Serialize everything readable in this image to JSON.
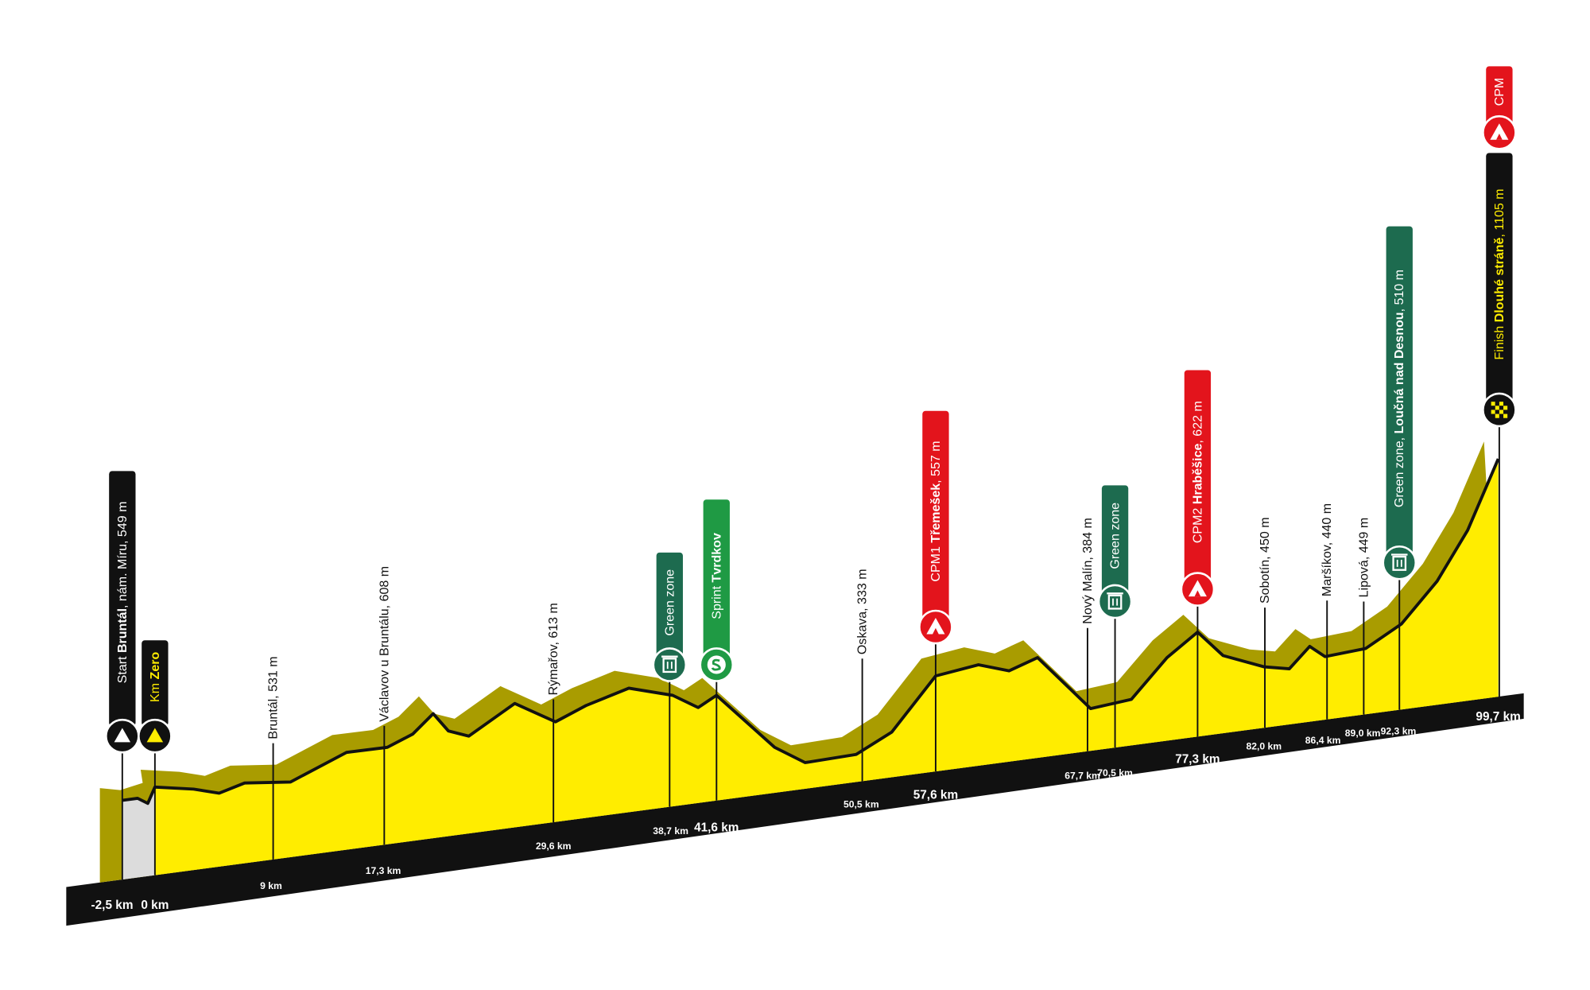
{
  "markers": [
    {
      "label": {
        "pre": "Start ",
        "bold": "Bruntál",
        "post": ", nám. Míru, 549 m"
      },
      "km": "-2,5 km"
    },
    {
      "label": {
        "pre": "Km ",
        "bold": "Zero"
      },
      "km": "0 km"
    },
    {
      "label": {
        "pre": "Bruntál, 531 m"
      },
      "km": "9 km"
    },
    {
      "label": {
        "pre": "Václavov u Bruntálu, 608 m"
      },
      "km": "17,3 km"
    },
    {
      "label": {
        "pre": "Rýmařov, 613 m"
      },
      "km": "29,6 km"
    },
    {
      "label": {
        "pre": "Green zone"
      },
      "km": "38,7 km"
    },
    {
      "label": {
        "pre": "Sprint ",
        "bold": "Tvrdkov"
      },
      "km": "41,6 km"
    },
    {
      "label": {
        "pre": "Oskava, 333 m"
      },
      "km": "50,5 km"
    },
    {
      "label": {
        "pre": "CPM1 ",
        "bold": "Třemešek",
        "post": ", 557 m"
      },
      "km": "57,6 km"
    },
    {
      "label": {
        "pre": "Nový Malín, 384 m"
      },
      "km": "67,7 km"
    },
    {
      "label": {
        "pre": "Green zone"
      },
      "km": "70,5 km"
    },
    {
      "label": {
        "pre": "CPM2 ",
        "bold": "Hraběšice",
        "post": ", 622 m"
      },
      "km": "77,3 km"
    },
    {
      "label": {
        "pre": "Sobotín, 450 m"
      },
      "km": "82,0 km"
    },
    {
      "label": {
        "pre": "Maršíkov, 440 m"
      },
      "km": "86,4 km"
    },
    {
      "label": {
        "pre": "Lipová, 449 m"
      },
      "km": "89,0 km"
    },
    {
      "label": {
        "pre": "Green zone, ",
        "bold": "Loučná nad Desnou",
        "post": ", 510 m"
      },
      "km": "92,3 km"
    },
    {
      "label": {
        "pre": "Finish ",
        "bold": "Dlouhé stráně",
        "post": ", 1105 m"
      },
      "km": "99,7 km",
      "cpm": "CPM"
    }
  ]
}
